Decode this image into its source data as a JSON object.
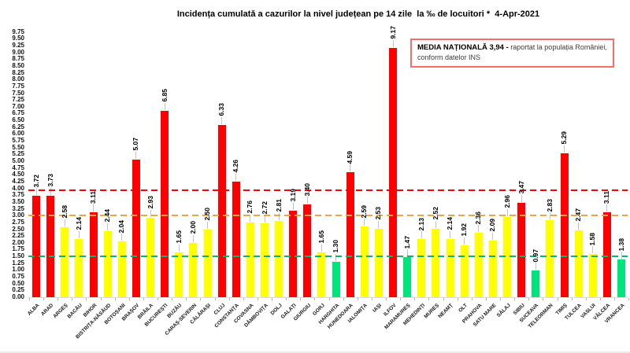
{
  "title": "Incidența cumulată a cazurilor la nivel județean pe 14 zile  la ‰ de locuitori *  4-Apr-2021",
  "note_box": {
    "bold": "MEDIA NAȚIONALĂ 3,94 -",
    "line1_rest": " raportat la populația României,",
    "line2": "conform datelor INS",
    "border_color": "#f76d6d"
  },
  "chart_data": {
    "type": "bar",
    "title": "Incidența cumulată a cazurilor la nivel județean pe 14 zile la ‰ de locuitori * 4-Apr-2021",
    "ylabel": "",
    "xlabel": "",
    "ylim": [
      0,
      9.75
    ],
    "ytick_step": 0.25,
    "grid": false,
    "categories": [
      "ALBA",
      "ARAD",
      "ARGEȘ",
      "BACĂU",
      "BIHOR",
      "BISTRIȚA-NĂSĂUD",
      "BOTOȘANI",
      "BRAȘOV",
      "BRĂILA",
      "BUCUREȘTI",
      "BUZĂU",
      "CARAȘ-SEVERIN",
      "CĂLĂRAȘI",
      "CLUJ",
      "CONSTANȚA",
      "COVASNA",
      "DÂMBOVIȚA",
      "DOLJ",
      "GALAȚI",
      "GIURGIU",
      "GORJ",
      "HARGHITA",
      "HUNEDOARA",
      "IALOMIȚA",
      "IAȘI",
      "ILFOV",
      "MARAMUREȘ",
      "MEHEDINȚI",
      "MUREȘ",
      "NEAMȚ",
      "OLT",
      "PRAHOVA",
      "SATU MARE",
      "SĂLAJ",
      "SIBIU",
      "SUCEAVA",
      "TELEORMAN",
      "TIMIȘ",
      "TULCEA",
      "VASLUI",
      "VÂLCEA",
      "VRANCEA"
    ],
    "values": [
      3.72,
      3.73,
      2.58,
      2.14,
      3.11,
      2.44,
      2.04,
      5.07,
      2.93,
      6.85,
      1.65,
      2.0,
      2.5,
      6.33,
      4.26,
      2.76,
      2.72,
      2.81,
      3.19,
      3.4,
      1.65,
      1.3,
      4.59,
      2.59,
      2.53,
      9.17,
      1.47,
      2.13,
      2.52,
      2.14,
      1.92,
      2.36,
      2.09,
      2.96,
      3.47,
      0.97,
      2.83,
      5.29,
      2.47,
      1.58,
      3.11,
      1.38
    ],
    "zones": [
      "red",
      "red",
      "yellow",
      "yellow",
      "red",
      "yellow",
      "yellow",
      "red",
      "yellow",
      "red",
      "yellow",
      "yellow",
      "yellow",
      "red",
      "red",
      "yellow",
      "yellow",
      "yellow",
      "red",
      "red",
      "yellow",
      "green",
      "red",
      "yellow",
      "yellow",
      "red",
      "green",
      "yellow",
      "yellow",
      "yellow",
      "yellow",
      "yellow",
      "yellow",
      "yellow",
      "red",
      "green",
      "yellow",
      "red",
      "yellow",
      "yellow",
      "red",
      "green"
    ],
    "palette": {
      "red": "#ff0000",
      "yellow": "#ffff00",
      "green": "#00e47c"
    },
    "thresholds": [
      {
        "name": "national-average",
        "value": 3.94,
        "color": "#ff0000"
      },
      {
        "name": "red-zone-threshold",
        "value": 3.0,
        "color": "#eda63c"
      },
      {
        "name": "green-zone-threshold",
        "value": 1.5,
        "color": "#0cb56d"
      }
    ],
    "legend_position": "top-right"
  }
}
